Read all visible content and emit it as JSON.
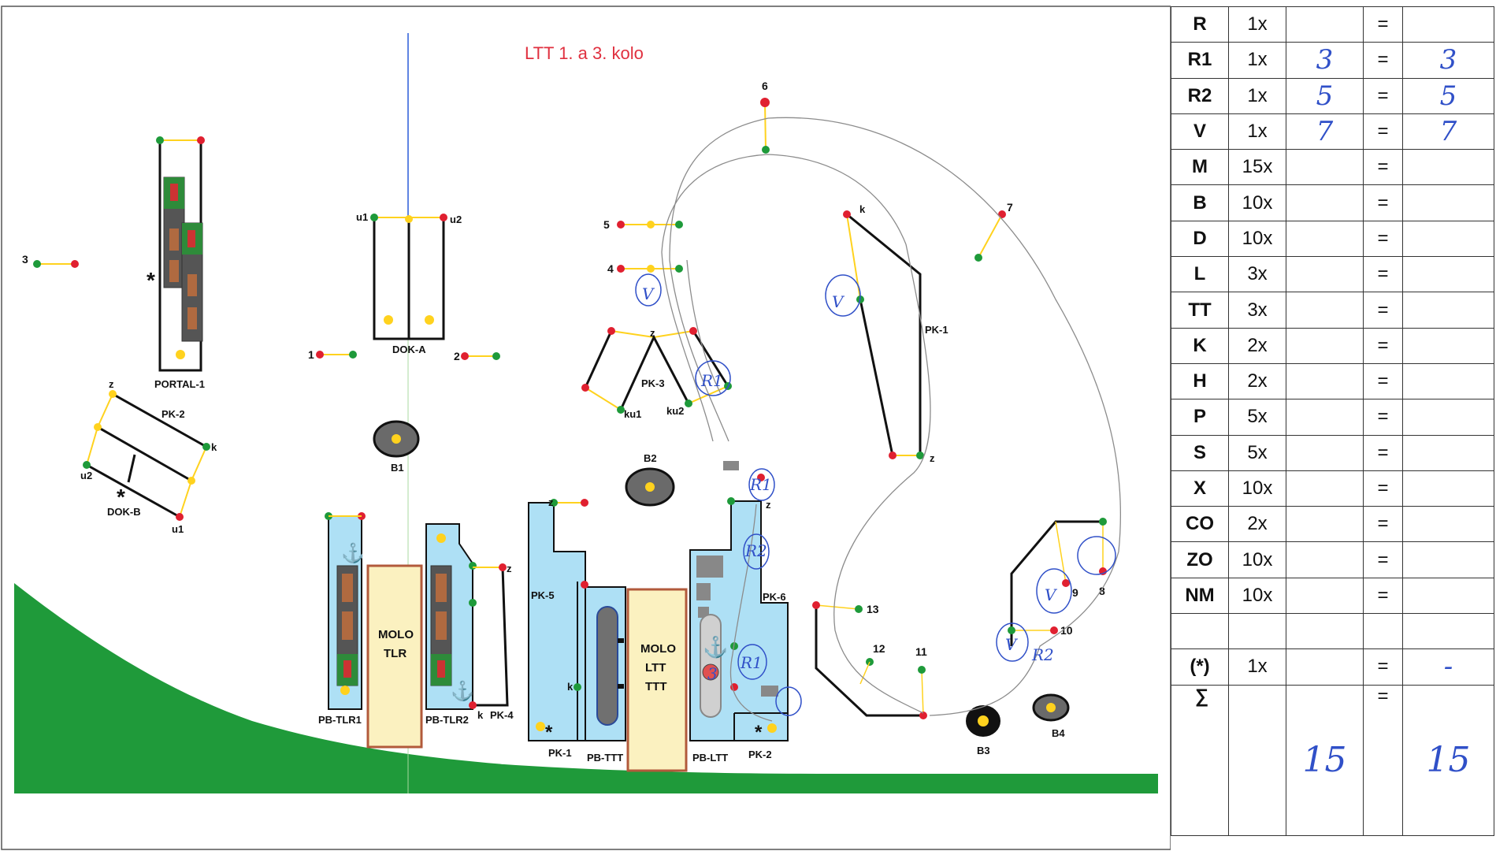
{
  "title": "LTT 1. a 3. kolo",
  "labels": {
    "portal1": "PORTAL-1",
    "doka": "DOK-A",
    "dokb": "DOK-B",
    "pk1_top": "PK-1",
    "pk2_top": "PK-2",
    "pk3": "PK-3",
    "pk4": "PK-4",
    "pk5": "PK-5",
    "pk6": "PK-6",
    "pk1_bottom": "PK-1",
    "pk2_bottom": "PK-2",
    "pb_tlr1": "PB-TLR1",
    "pb_tlr2": "PB-TLR2",
    "pb_ttt": "PB-TTT",
    "pb_ltt": "PB-LTT",
    "molo_tlr_1": "MOLO",
    "molo_tlr_2": "TLR",
    "molo_ltt_1": "MOLO",
    "molo_ltt_2": "LTT",
    "molo_ltt_3": "TTT",
    "b1": "B1",
    "b2": "B2",
    "b3": "B3",
    "b4": "B4",
    "u1": "u1",
    "u2": "u2",
    "u1b": "u1",
    "u2b": "u2",
    "z_pk2": "z",
    "k_pk2": "k",
    "z_pk3": "z",
    "ku1": "ku1",
    "ku2": "ku2",
    "k_pk1": "k",
    "z_pk1": "z",
    "z_pk4": "z",
    "k_pk4": "k",
    "z_pk5": "z",
    "k_pk5": "k",
    "z_pk6": "z",
    "star": "*"
  },
  "numbers": {
    "n1": "1",
    "n2": "2",
    "n3": "3",
    "n4": "4",
    "n5": "5",
    "n6": "6",
    "n7": "7",
    "n8": "8",
    "n9": "9",
    "n10": "10",
    "n11": "11",
    "n12": "12",
    "n13": "13"
  },
  "handwriting": {
    "v": "V",
    "r1": "R1",
    "r2": "R2",
    "r2b": "R2",
    "three": "3"
  },
  "table": {
    "rows": [
      {
        "code": "R",
        "mult": "1x",
        "val": "",
        "eq": "=",
        "res": ""
      },
      {
        "code": "R1",
        "mult": "1x",
        "val": "3",
        "eq": "=",
        "res": "3"
      },
      {
        "code": "R2",
        "mult": "1x",
        "val": "5",
        "eq": "=",
        "res": "5"
      },
      {
        "code": "V",
        "mult": "1x",
        "val": "7",
        "eq": "=",
        "res": "7"
      },
      {
        "code": "M",
        "mult": "15x",
        "val": "",
        "eq": "=",
        "res": ""
      },
      {
        "code": "B",
        "mult": "10x",
        "val": "",
        "eq": "=",
        "res": ""
      },
      {
        "code": "D",
        "mult": "10x",
        "val": "",
        "eq": "=",
        "res": ""
      },
      {
        "code": "L",
        "mult": "3x",
        "val": "",
        "eq": "=",
        "res": ""
      },
      {
        "code": "TT",
        "mult": "3x",
        "val": "",
        "eq": "=",
        "res": ""
      },
      {
        "code": "K",
        "mult": "2x",
        "val": "",
        "eq": "=",
        "res": ""
      },
      {
        "code": "H",
        "mult": "2x",
        "val": "",
        "eq": "=",
        "res": ""
      },
      {
        "code": "P",
        "mult": "5x",
        "val": "",
        "eq": "=",
        "res": ""
      },
      {
        "code": "S",
        "mult": "5x",
        "val": "",
        "eq": "=",
        "res": ""
      },
      {
        "code": "X",
        "mult": "10x",
        "val": "",
        "eq": "=",
        "res": ""
      },
      {
        "code": "CO",
        "mult": "2x",
        "val": "",
        "eq": "=",
        "res": ""
      },
      {
        "code": "ZO",
        "mult": "10x",
        "val": "",
        "eq": "=",
        "res": ""
      },
      {
        "code": "NM",
        "mult": "10x",
        "val": "",
        "eq": "=",
        "res": ""
      },
      {
        "code": "",
        "mult": "",
        "val": "",
        "eq": "",
        "res": ""
      },
      {
        "code": "(*)",
        "mult": "1x",
        "val": "",
        "eq": "=",
        "res": "-"
      }
    ],
    "sum": {
      "code": "∑",
      "mult": "",
      "val": "15",
      "eq": "=",
      "res": "15"
    }
  },
  "colors": {
    "green": "#1e9a3a",
    "red": "#e02030",
    "yellow": "#ffd21e",
    "water": "#aee0f5",
    "molo": "#fbf1c0",
    "grass": "#1f9a3a",
    "ink": "#3050c8"
  }
}
